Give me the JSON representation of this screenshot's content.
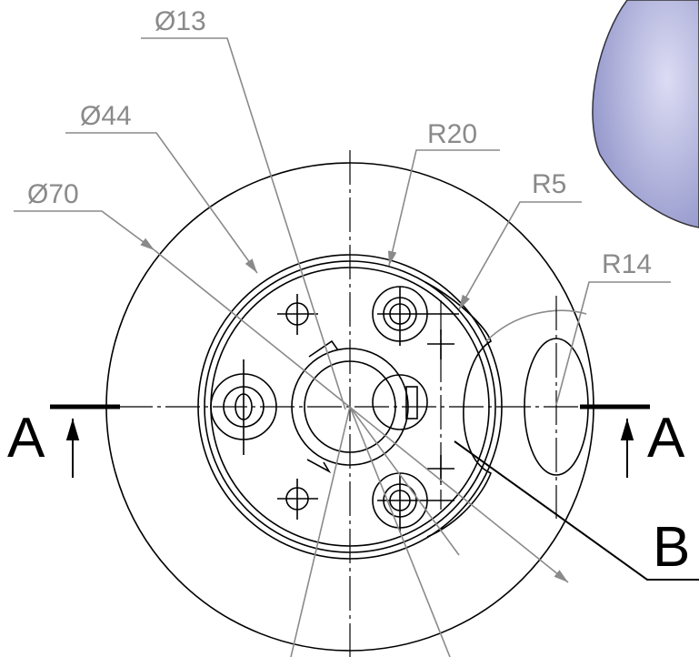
{
  "labels": {
    "dia13": "Ø13",
    "dia44": "Ø44",
    "dia70": "Ø70",
    "r20": "R20",
    "r5": "R5",
    "r14": "R14",
    "section_left": "A",
    "section_right": "A",
    "detail": "B"
  }
}
